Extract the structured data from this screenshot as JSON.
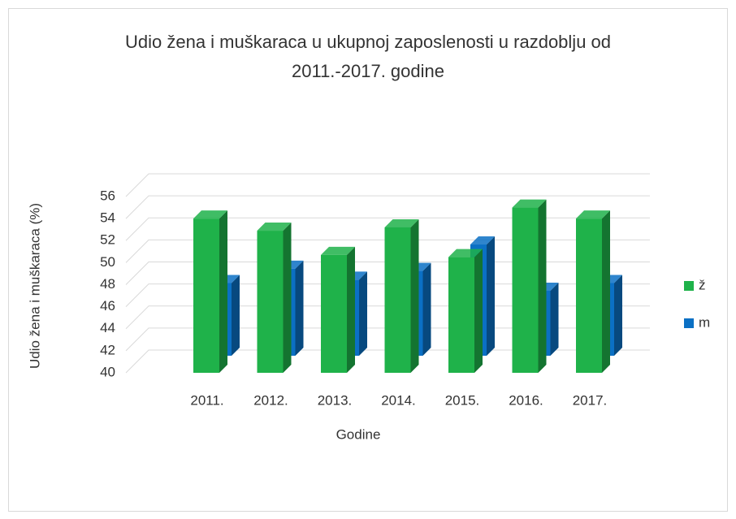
{
  "chart_data": {
    "type": "bar3d",
    "title": "Udio žena i muškaraca u ukupnoj zaposlenosti u razdoblju od 2011.-2017. godine",
    "x_label": "Godine",
    "y_label": "Udio žena i muškaraca (%)",
    "categories": [
      "2011.",
      "2012.",
      "2013.",
      "2014.",
      "2015.",
      "2016.",
      "2017."
    ],
    "series": [
      {
        "name": "ž",
        "color": "#1fb24a",
        "values": [
          54,
          52.9,
          50.7,
          53.2,
          50.5,
          55,
          54
        ]
      },
      {
        "name": "m",
        "color": "#0b70c4",
        "values": [
          46.6,
          47.9,
          46.9,
          47.7,
          50.1,
          45.9,
          46.6
        ]
      }
    ],
    "ylim": [
      40,
      56
    ],
    "yticks": [
      40,
      42,
      44,
      46,
      48,
      50,
      52,
      54,
      56
    ],
    "grid": true,
    "legend": "right"
  }
}
